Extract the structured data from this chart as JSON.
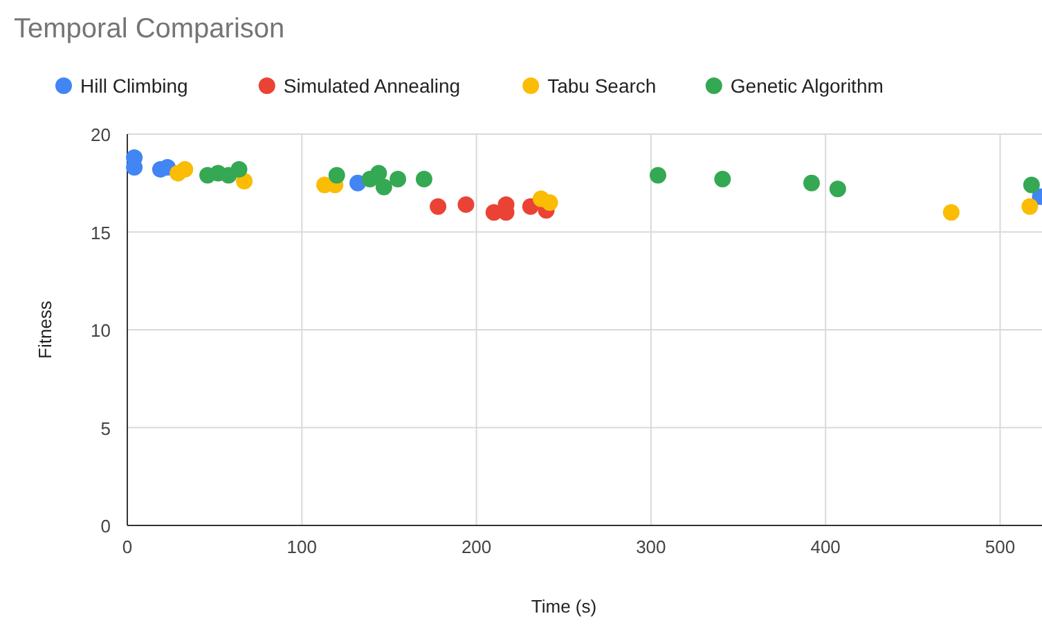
{
  "chart_data": {
    "type": "scatter",
    "title": "Temporal Comparison",
    "xlabel": "Time (s)",
    "ylabel": "Fitness",
    "xlim": [
      0,
      524
    ],
    "xticks": [
      0,
      100,
      200,
      300,
      400,
      500
    ],
    "ylim": [
      0,
      20
    ],
    "yticks": [
      0,
      5,
      10,
      15,
      20
    ],
    "grid": true,
    "legend": "top left",
    "marker": "circle",
    "series": [
      {
        "name": "Hill Climbing",
        "color": "#4285f4",
        "x": [
          4,
          4,
          19,
          23,
          132,
          523
        ],
        "values": [
          18.8,
          18.3,
          18.2,
          18.3,
          17.5,
          16.8
        ]
      },
      {
        "name": "Simulated Annealing",
        "color": "#ea4335",
        "x": [
          178,
          194,
          210,
          217,
          217,
          231,
          240
        ],
        "values": [
          16.3,
          16.4,
          16.0,
          16.4,
          16.0,
          16.3,
          16.1
        ]
      },
      {
        "name": "Tabu Search",
        "color": "#fbbc04",
        "x": [
          29,
          33,
          67,
          113,
          119,
          237,
          242,
          472,
          517
        ],
        "values": [
          18.0,
          18.2,
          17.6,
          17.4,
          17.4,
          16.7,
          16.5,
          16.0,
          16.3
        ]
      },
      {
        "name": "Genetic Algorithm",
        "color": "#34a853",
        "x": [
          46,
          52,
          58,
          64,
          120,
          139,
          144,
          147,
          155,
          170,
          304,
          341,
          392,
          407,
          518
        ],
        "values": [
          17.9,
          18.0,
          17.9,
          18.2,
          17.9,
          17.7,
          18.0,
          17.3,
          17.7,
          17.7,
          17.9,
          17.7,
          17.5,
          17.2,
          17.4
        ]
      }
    ]
  }
}
